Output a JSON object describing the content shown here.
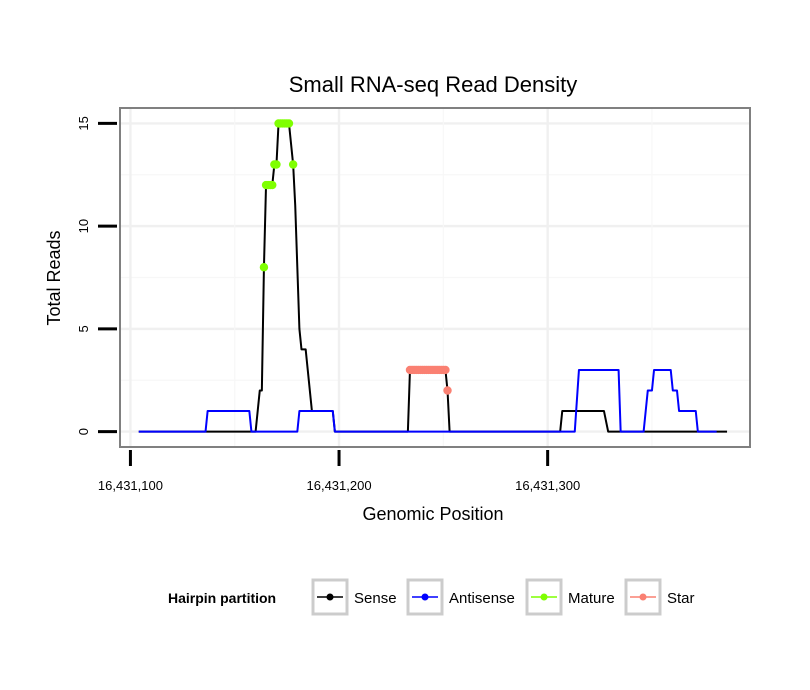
{
  "chart_data": {
    "type": "line",
    "title": "Small RNA-seq Read Density",
    "xlabel": "Genomic Position",
    "ylabel": "Total Reads",
    "xlim": [
      16431095,
      16431397
    ],
    "ylim": [
      -0.75,
      15.75
    ],
    "x_ticks": [
      16431100,
      16431200,
      16431300
    ],
    "x_tick_labels": [
      "16,431,100",
      "16,431,200",
      "16,431,300"
    ],
    "y_ticks": [
      0,
      5,
      10,
      15
    ],
    "y_tick_labels": [
      "0",
      "5",
      "10",
      "15"
    ],
    "grid": true,
    "legend": {
      "title": "Hairpin partition",
      "position": "bottom",
      "entries": [
        "Sense",
        "Antisense",
        "Mature",
        "Star"
      ]
    },
    "series": [
      {
        "name": "Sense",
        "color": "#000000",
        "style": "line",
        "points": [
          [
            16431104,
            0
          ],
          [
            16431160,
            0
          ],
          [
            16431161,
            1
          ],
          [
            16431162,
            2
          ],
          [
            16431163,
            2
          ],
          [
            16431164,
            8
          ],
          [
            16431165,
            12
          ],
          [
            16431166,
            12
          ],
          [
            16431167,
            12
          ],
          [
            16431168,
            12
          ],
          [
            16431169,
            13
          ],
          [
            16431170,
            13
          ],
          [
            16431171,
            15
          ],
          [
            16431176,
            15
          ],
          [
            16431177,
            14
          ],
          [
            16431178,
            13
          ],
          [
            16431179,
            11
          ],
          [
            16431180,
            8
          ],
          [
            16431181,
            5
          ],
          [
            16431182,
            4
          ],
          [
            16431184,
            4
          ],
          [
            16431185,
            3
          ],
          [
            16431186,
            2
          ],
          [
            16431187,
            1
          ],
          [
            16431197,
            1
          ],
          [
            16431198,
            0
          ],
          [
            16431233,
            0
          ],
          [
            16431234,
            3
          ],
          [
            16431251,
            3
          ],
          [
            16431252,
            2
          ],
          [
            16431253,
            0
          ],
          [
            16431306,
            0
          ],
          [
            16431307,
            1
          ],
          [
            16431327,
            1
          ],
          [
            16431329,
            0
          ],
          [
            16431386,
            0
          ]
        ]
      },
      {
        "name": "Antisense",
        "color": "#0000ff",
        "style": "line",
        "points": [
          [
            16431104,
            0
          ],
          [
            16431136,
            0
          ],
          [
            16431137,
            1
          ],
          [
            16431157,
            1
          ],
          [
            16431158,
            0
          ],
          [
            16431180,
            0
          ],
          [
            16431181,
            1
          ],
          [
            16431197,
            1
          ],
          [
            16431198,
            0
          ],
          [
            16431313,
            0
          ],
          [
            16431315,
            3
          ],
          [
            16431334,
            3
          ],
          [
            16431335,
            0
          ],
          [
            16431346,
            0
          ],
          [
            16431347,
            1
          ],
          [
            16431348,
            2
          ],
          [
            16431350,
            2
          ],
          [
            16431351,
            3
          ],
          [
            16431359,
            3
          ],
          [
            16431360,
            2
          ],
          [
            16431362,
            2
          ],
          [
            16431363,
            1
          ],
          [
            16431371,
            1
          ],
          [
            16431372,
            0
          ],
          [
            16431381,
            0
          ]
        ]
      },
      {
        "name": "Mature",
        "color": "#7fff00",
        "style": "points",
        "points": [
          [
            16431164,
            8
          ],
          [
            16431165,
            12
          ],
          [
            16431166,
            12
          ],
          [
            16431167,
            12
          ],
          [
            16431168,
            12
          ],
          [
            16431169,
            13
          ],
          [
            16431170,
            13
          ],
          [
            16431171,
            15
          ],
          [
            16431172,
            15
          ],
          [
            16431173,
            15
          ],
          [
            16431174,
            15
          ],
          [
            16431175,
            15
          ],
          [
            16431176,
            15
          ],
          [
            16431178,
            13
          ]
        ]
      },
      {
        "name": "Star",
        "color": "#fa8072",
        "style": "points",
        "points": [
          [
            16431234,
            3
          ],
          [
            16431235,
            3
          ],
          [
            16431236,
            3
          ],
          [
            16431237,
            3
          ],
          [
            16431238,
            3
          ],
          [
            16431239,
            3
          ],
          [
            16431240,
            3
          ],
          [
            16431241,
            3
          ],
          [
            16431242,
            3
          ],
          [
            16431243,
            3
          ],
          [
            16431244,
            3
          ],
          [
            16431245,
            3
          ],
          [
            16431246,
            3
          ],
          [
            16431247,
            3
          ],
          [
            16431248,
            3
          ],
          [
            16431249,
            3
          ],
          [
            16431250,
            3
          ],
          [
            16431251,
            3
          ],
          [
            16431252,
            2
          ]
        ]
      }
    ]
  }
}
